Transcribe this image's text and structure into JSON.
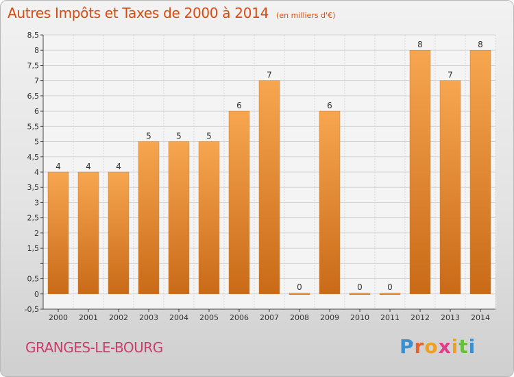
{
  "title": "Autres Impôts et Taxes de 2000 à 2014",
  "unit": "(en milliers d'€)",
  "commune": "GRANGES-LE-BOURG",
  "brand": {
    "text": "Proxiti",
    "colors": [
      "#3a8fd0",
      "#e8622a",
      "#f0a020",
      "#e23c8c",
      "#f0a020",
      "#6abf3a",
      "#3a8fd0"
    ]
  },
  "colors": {
    "bar_top": "#f7a650",
    "bar_bottom": "#c96a17",
    "grid": "#d4d4d4",
    "axis": "#444444",
    "text": "#333333"
  },
  "chart_data": {
    "type": "bar",
    "categories": [
      "2000",
      "2001",
      "2002",
      "2003",
      "2004",
      "2005",
      "2006",
      "2007",
      "2008",
      "2009",
      "2010",
      "2011",
      "2012",
      "2013",
      "2014"
    ],
    "values": [
      4,
      4,
      4,
      5,
      5,
      5,
      6,
      7,
      0,
      6,
      0,
      0,
      8,
      7,
      8
    ],
    "data_labels": [
      "4",
      "4",
      "4",
      "5",
      "5",
      "5",
      "6",
      "7",
      "0",
      "6",
      "0",
      "0",
      "8",
      "7",
      "8"
    ],
    "ylim": [
      -0.5,
      8.5
    ],
    "yticks": [
      -0.5,
      0,
      0.5,
      1,
      1.5,
      2,
      2.5,
      3,
      3.5,
      4,
      4.5,
      5,
      5.5,
      6,
      6.5,
      7,
      7.5,
      8,
      8.5
    ],
    "ytick_labels": [
      "-0,5",
      "0",
      "0,5",
      "",
      "1,5",
      "2",
      "2,5",
      "3",
      "3,5",
      "4",
      "4,5",
      "5",
      "5,5",
      "6",
      "6,5",
      "7",
      "7,5",
      "8",
      "8,5"
    ],
    "grid": true
  }
}
